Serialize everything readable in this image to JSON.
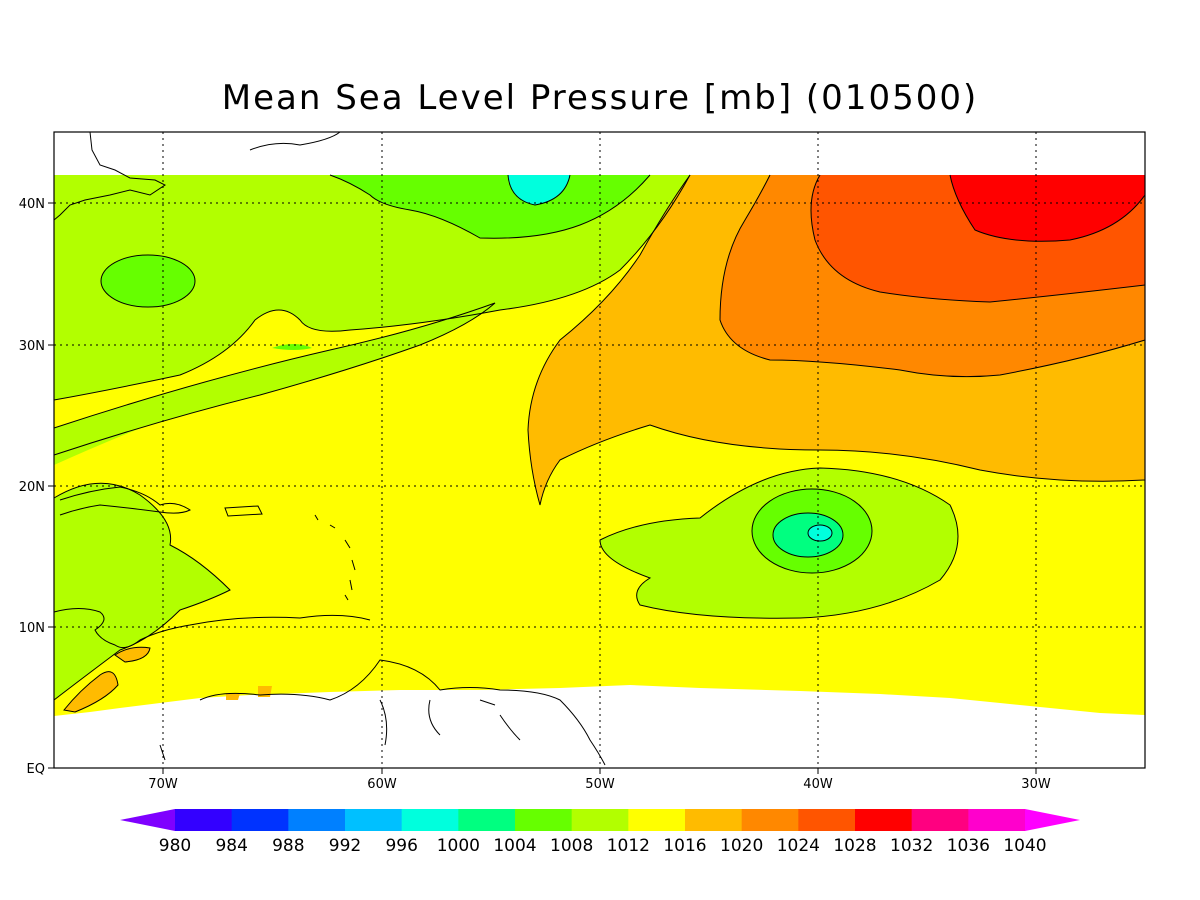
{
  "map": {
    "title": "Mean Sea Level Pressure [mb] (010500)",
    "lon_labels": [
      "70W",
      "60W",
      "50W",
      "40W",
      "30W"
    ],
    "lat_labels": [
      "40N",
      "30N",
      "20N",
      "10N",
      "EQ"
    ],
    "extent": {
      "lon_min": -75,
      "lon_max": -25,
      "lat_min": 0,
      "lat_max": 45
    }
  },
  "colorbar": {
    "labels": [
      "980",
      "984",
      "988",
      "992",
      "996",
      "1000",
      "1004",
      "1008",
      "1012",
      "1016",
      "1020",
      "1024",
      "1028",
      "1032",
      "1036",
      "1040"
    ],
    "colors": [
      "#7f00ff",
      "#3300ff",
      "#0033ff",
      "#0080ff",
      "#00c0ff",
      "#00ffdd",
      "#00ff80",
      "#66ff00",
      "#b2ff00",
      "#ffff00",
      "#ffbb00",
      "#ff8800",
      "#ff5500",
      "#ff0000",
      "#ff0080",
      "#ff00cc",
      "#ff00ff"
    ]
  },
  "fill_colors": {
    "c1004": "#00ff80",
    "c1008": "#66ff00",
    "c1012": "#b2ff00",
    "c1016": "#ffff00",
    "c1020": "#ffbb00",
    "c1024": "#ff8800",
    "c1028": "#ff5500",
    "c1032": "#ff0000",
    "c1000": "#00ffdd"
  }
}
